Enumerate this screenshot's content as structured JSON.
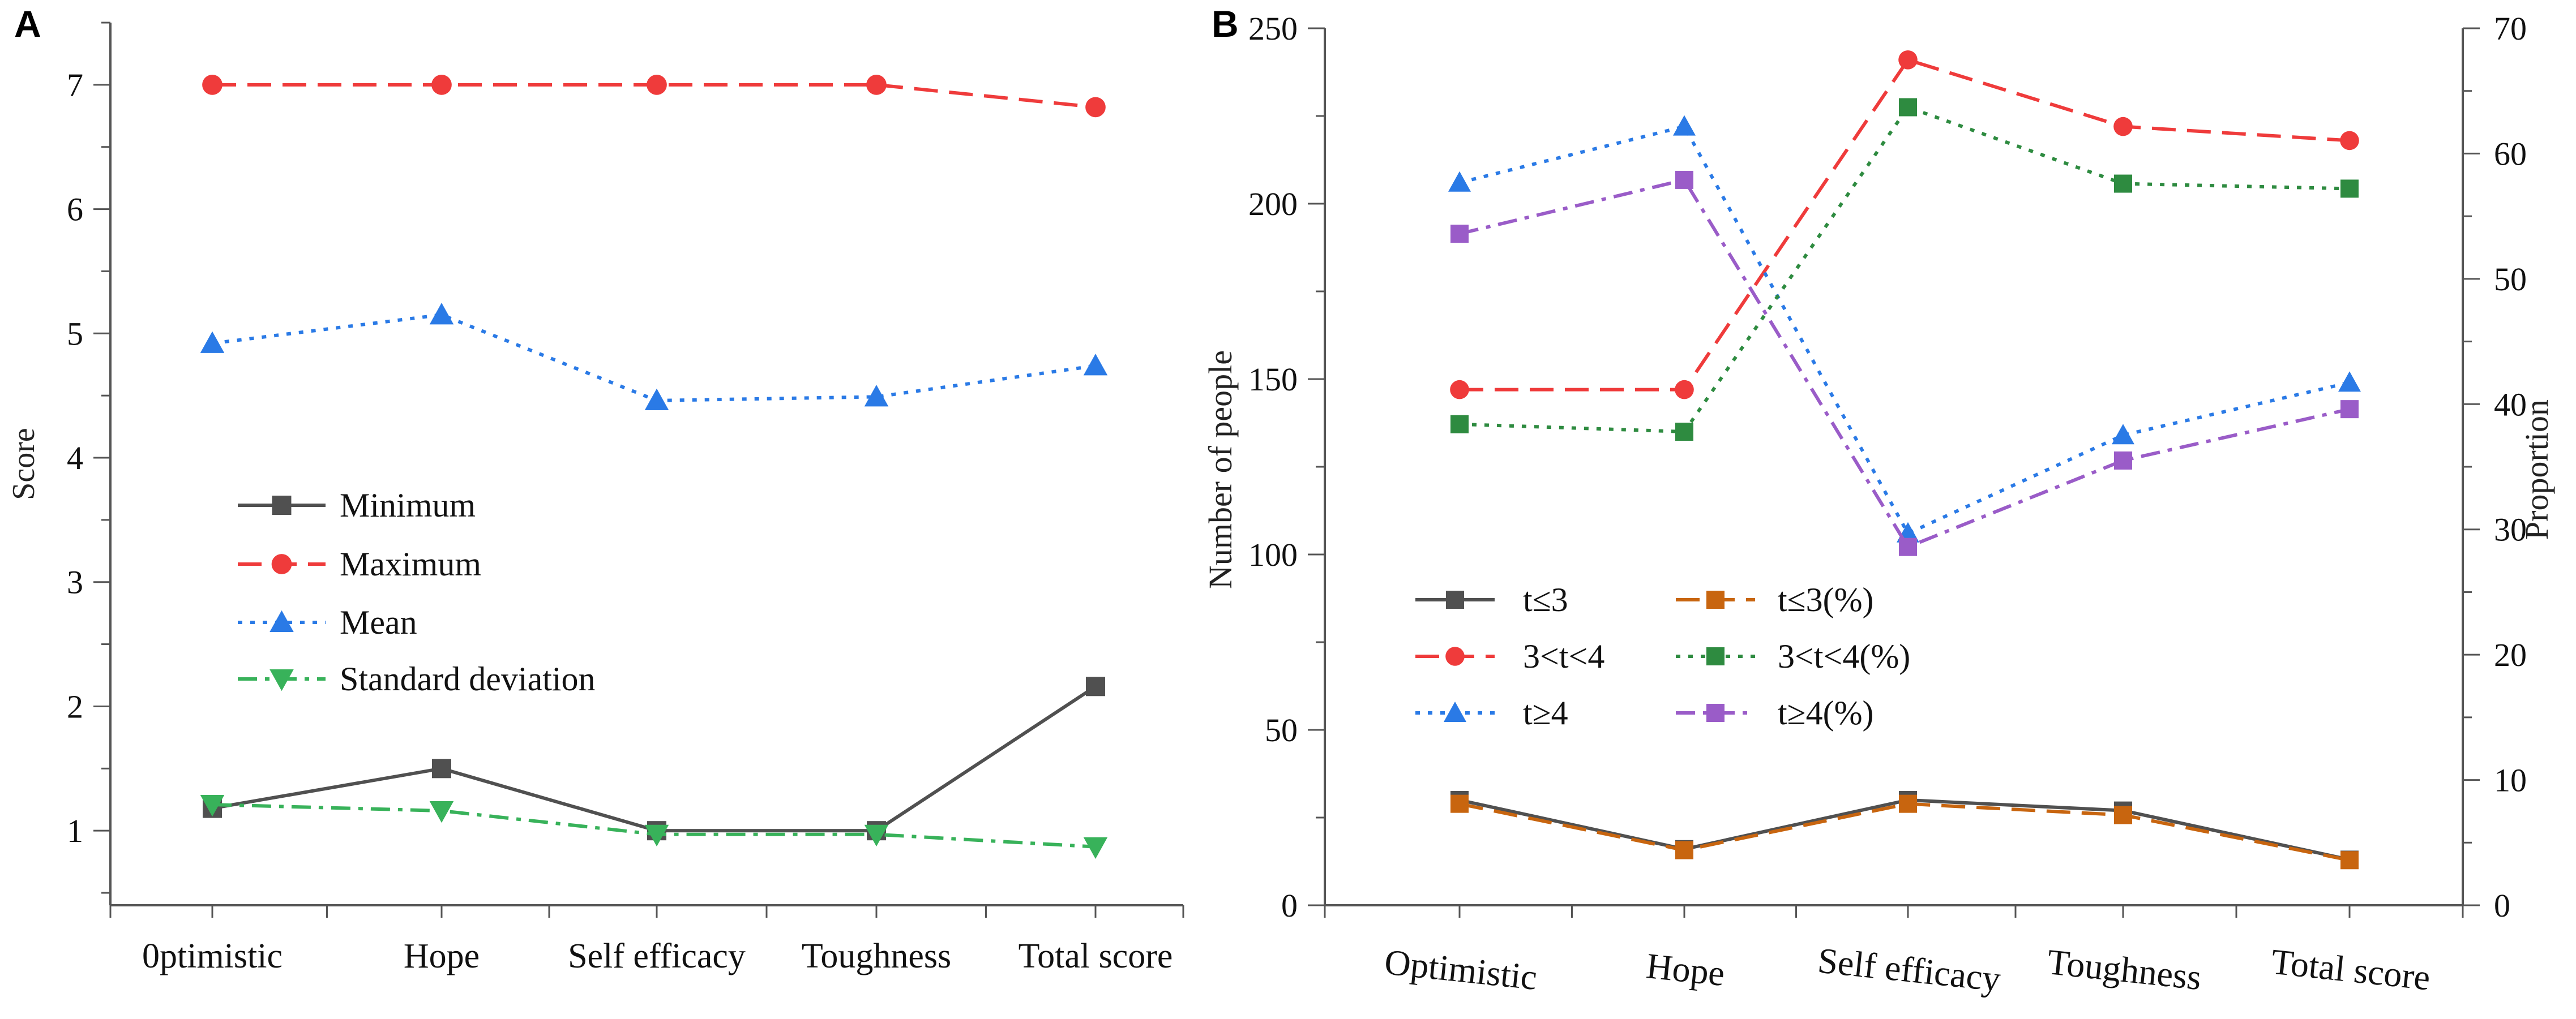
{
  "colors": {
    "minimum": "#505050",
    "maximum": "#ef3b3b",
    "mean": "#2a7ae6",
    "std": "#38b25a",
    "t3pct": "#c8650f",
    "t34pct": "#2e8b40",
    "t4pct": "#9a5cc8"
  },
  "chart_data": [
    {
      "panel_label": "A",
      "type": "line",
      "ylabel": "Score",
      "xlabel": "",
      "ylim": [
        0.4,
        7.5
      ],
      "yticks": [
        1,
        2,
        3,
        4,
        5,
        6,
        7
      ],
      "categories": [
        "0ptimistic",
        "Hope",
        "Self efficacy",
        "Toughness",
        "Total score"
      ],
      "legend_position": "center-left",
      "series": [
        {
          "name": "Minimum",
          "values": [
            1.18,
            1.5,
            1.0,
            1.0,
            2.16
          ],
          "marker": "square",
          "dash": "solid",
          "colorKey": "minimum"
        },
        {
          "name": "Maximum",
          "values": [
            7.0,
            7.0,
            7.0,
            7.0,
            6.82
          ],
          "marker": "circle",
          "dash": "dashed",
          "colorKey": "maximum"
        },
        {
          "name": "Mean",
          "values": [
            4.92,
            5.15,
            4.46,
            4.49,
            4.74
          ],
          "marker": "triangle",
          "dash": "dotted",
          "colorKey": "mean"
        },
        {
          "name": "Standard deviation",
          "values": [
            1.21,
            1.16,
            0.97,
            0.97,
            0.87
          ],
          "marker": "triangle-down",
          "dash": "dashdot",
          "colorKey": "std"
        }
      ]
    },
    {
      "panel_label": "B",
      "type": "line",
      "ylabel": "Number of people",
      "y2label": "Proportion",
      "ylim": [
        0,
        250
      ],
      "y2lim": [
        0,
        70
      ],
      "yticks": [
        0,
        50,
        100,
        150,
        200,
        250
      ],
      "y2ticks": [
        0,
        10,
        20,
        30,
        40,
        50,
        60,
        70
      ],
      "categories": [
        "Optimistic",
        "Hope",
        "Self efficacy",
        "Toughness",
        "Total score"
      ],
      "legend_position": "center-left",
      "series": [
        {
          "name": "t≤3",
          "axis": "left",
          "values": [
            30,
            16,
            30,
            27,
            13
          ],
          "marker": "square",
          "dash": "solid",
          "colorKey": "minimum"
        },
        {
          "name": "3<t<4",
          "axis": "left",
          "values": [
            147,
            147,
            241,
            222,
            218
          ],
          "marker": "circle",
          "dash": "dashed",
          "colorKey": "maximum"
        },
        {
          "name": "t≥4",
          "axis": "left",
          "values": [
            206,
            222,
            106,
            134,
            149
          ],
          "marker": "triangle",
          "dash": "dotted",
          "colorKey": "mean"
        },
        {
          "name": "t≤3(%)",
          "axis": "right",
          "values": [
            8.1,
            4.4,
            8.1,
            7.2,
            3.6
          ],
          "marker": "square",
          "dash": "dashed",
          "colorKey": "t3pct"
        },
        {
          "name": "3<t<4(%)",
          "axis": "right",
          "values": [
            38.4,
            37.8,
            63.7,
            57.6,
            57.2
          ],
          "marker": "square",
          "dash": "dotted",
          "colorKey": "t34pct"
        },
        {
          "name": "t≥4(%)",
          "axis": "right",
          "values": [
            53.6,
            57.9,
            28.6,
            35.5,
            39.6
          ],
          "marker": "square",
          "dash": "dashdot",
          "colorKey": "t4pct"
        }
      ]
    }
  ]
}
